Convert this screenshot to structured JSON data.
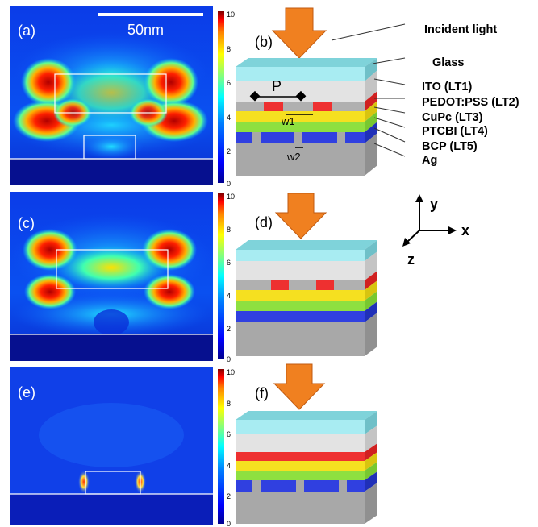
{
  "panels": {
    "a": "(a)",
    "b": "(b)",
    "c": "(c)",
    "d": "(d)",
    "e": "(e)",
    "f": "(f)"
  },
  "scale_bar": {
    "label": "50nm"
  },
  "colorbar": {
    "ticks": [
      "10",
      "8",
      "6",
      "4",
      "2",
      "0"
    ],
    "min": 0,
    "max": 10,
    "colors": [
      "#00008f",
      "#0000ff",
      "#0080ff",
      "#00ffff",
      "#80ff80",
      "#ffff00",
      "#ff8000",
      "#ff0000",
      "#800000"
    ]
  },
  "layers": {
    "incident": "Incident light",
    "glass": "Glass",
    "ito": "ITO (LT1)",
    "pedot": "PEDOT:PSS (LT2)",
    "cupc": "CuPc (LT3)",
    "ptcbi": "PTCBI (LT4)",
    "bcp": "BCP (LT5)",
    "ag": "Ag"
  },
  "dims": {
    "period": "P",
    "w1": "w1",
    "w2": "w2"
  },
  "axes": {
    "x": "x",
    "y": "y",
    "z": "z"
  },
  "colors": {
    "arrow": "#f08020",
    "glass": "#a8ecf2",
    "ito": "#e3e3e3",
    "pedot_ridge": "#ee3030",
    "cupc": "#f5e020",
    "ptcbi": "#8ee040",
    "bcp": "#3040e0",
    "ag": "#a8a8a8"
  }
}
